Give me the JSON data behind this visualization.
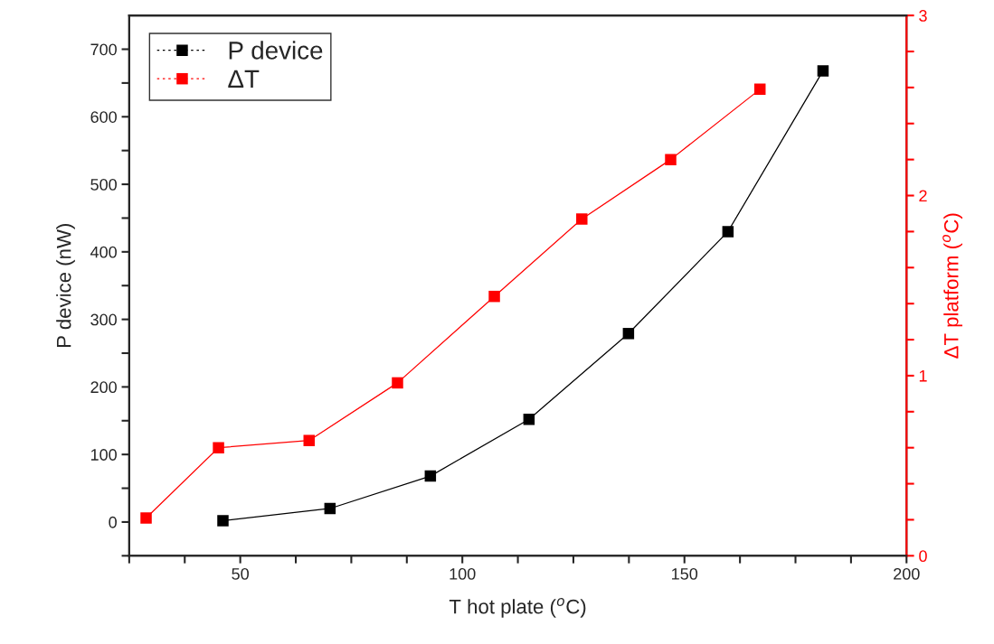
{
  "chart_data": {
    "type": "line",
    "xlabel": "T hot plate ($^{o}$C)",
    "ylabel": "P device (nW)",
    "y2label": "ΔT platform ($^{o}$C)",
    "xlim": [
      25,
      200
    ],
    "ylim": [
      -50,
      750
    ],
    "y2lim": [
      0,
      3
    ],
    "xticks": [
      {
        "value": 25,
        "label": null
      },
      {
        "value": 37.5,
        "label": null
      },
      50,
      {
        "value": 62.5,
        "label": null
      },
      {
        "value": 75,
        "label": null
      },
      {
        "value": 87.5,
        "label": null
      },
      100,
      {
        "value": 112.5,
        "label": null
      },
      {
        "value": 125,
        "label": null
      },
      {
        "value": 137.5,
        "label": null
      },
      150,
      {
        "value": 162.5,
        "label": null
      },
      {
        "value": 175,
        "label": null
      },
      {
        "value": 187.5,
        "label": null
      },
      200
    ],
    "yticks": [
      {
        "value": -50,
        "label": null
      },
      0,
      {
        "value": 50,
        "label": null
      },
      100,
      {
        "value": 150,
        "label": null
      },
      200,
      {
        "value": 250,
        "label": null
      },
      300,
      {
        "value": 350,
        "label": null
      },
      400,
      {
        "value": 450,
        "label": null
      },
      500,
      {
        "value": 550,
        "label": null
      },
      600,
      {
        "value": 650,
        "label": null
      },
      700
    ],
    "y2ticks": [
      0,
      {
        "value": 0.2,
        "label": null
      },
      {
        "value": 0.4,
        "label": null
      },
      {
        "value": 0.6,
        "label": null
      },
      {
        "value": 0.8,
        "label": null
      },
      1,
      {
        "value": 1.2,
        "label": null
      },
      {
        "value": 1.4,
        "label": null
      },
      {
        "value": 1.6,
        "label": null
      },
      {
        "value": 1.8,
        "label": null
      },
      2,
      {
        "value": 2.2,
        "label": null
      },
      {
        "value": 2.4,
        "label": null
      },
      {
        "value": 2.6,
        "label": null
      },
      {
        "value": 2.8,
        "label": null
      },
      3
    ],
    "marker": "square",
    "line_style": "solid",
    "grid": false,
    "legend": "top left",
    "series": [
      {
        "name": "P device",
        "color": "#000000",
        "x": [
          46.1,
          70.2,
          92.8,
          115.0,
          137.4,
          159.8,
          181.2
        ],
        "values": [
          2,
          20,
          68,
          152,
          279,
          430,
          668
        ]
      },
      {
        "name": "ΔT",
        "color": "#ff0000",
        "axis": "y2",
        "x": [
          28.8,
          45.1,
          65.5,
          85.4,
          107.2,
          126.9,
          146.9,
          167.0
        ],
        "values": [
          0.21,
          0.6,
          0.64,
          0.96,
          1.44,
          1.87,
          2.2,
          2.59
        ]
      }
    ]
  }
}
